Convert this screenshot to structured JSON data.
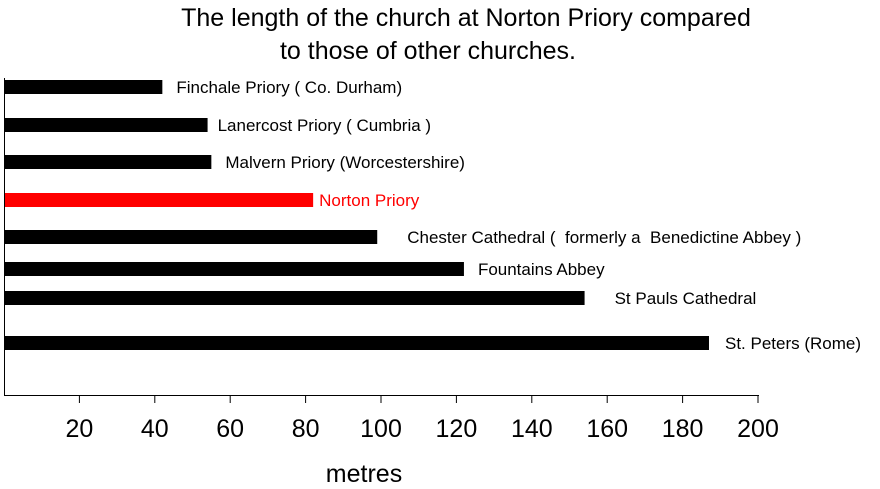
{
  "chart_data": {
    "type": "bar",
    "orientation": "horizontal",
    "title_lines": [
      "The length of the church at Norton Priory compared",
      "to those of other churches."
    ],
    "xlabel": "metres",
    "ylabel": "",
    "xlim": [
      0,
      200
    ],
    "xticks": [
      20,
      40,
      60,
      80,
      100,
      120,
      140,
      160,
      180,
      200
    ],
    "grid": false,
    "legend": "none",
    "categories": [
      "Finchale Priory ( Co. Durham)",
      "Lanercost Priory ( Cumbria )",
      "Malvern Priory (Worcestershire)",
      "Norton Priory",
      "Chester Cathedral (  formerly a  Benedictine Abbey )",
      "Fountains Abbey",
      "St Pauls Cathedral",
      "St. Peters (Rome)"
    ],
    "values": [
      42,
      54,
      55,
      82,
      99,
      122,
      154,
      187
    ],
    "colors": [
      "#000000",
      "#000000",
      "#000000",
      "#ff0000",
      "#000000",
      "#000000",
      "#000000",
      "#000000"
    ]
  }
}
